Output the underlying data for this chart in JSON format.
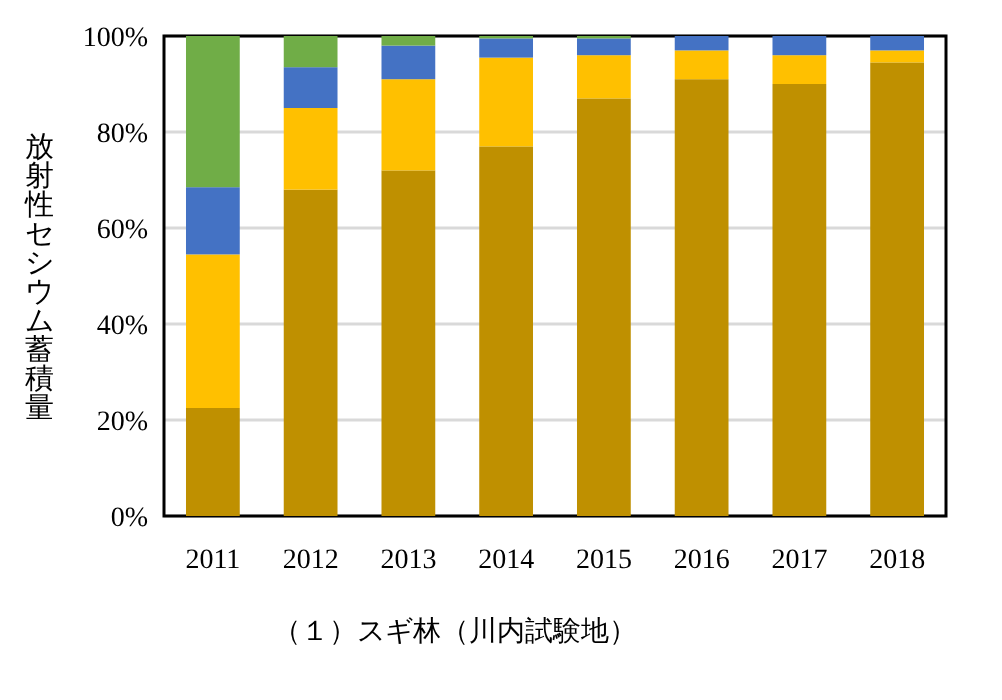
{
  "chart_data": {
    "type": "bar",
    "stacked": true,
    "title": "（１）スギ林（川内試験地）",
    "ylabel": "放射性セシウム蓄積量",
    "categories": [
      "2011",
      "2012",
      "2013",
      "2014",
      "2015",
      "2016",
      "2017",
      "2018"
    ],
    "series": [
      {
        "color": "#bf9000",
        "values": [
          22.5,
          68,
          72,
          77,
          87,
          91,
          90,
          94.5
        ]
      },
      {
        "color": "#ffc000",
        "values": [
          32,
          17,
          19,
          18.5,
          9,
          6,
          6,
          2.5
        ]
      },
      {
        "color": "#4472c4",
        "values": [
          14,
          8.5,
          7,
          4,
          3.5,
          3,
          4,
          3
        ]
      },
      {
        "color": "#70ad47",
        "values": [
          31.5,
          6.5,
          2,
          0.5,
          0.5,
          0,
          0,
          0
        ]
      }
    ],
    "ylim": [
      0,
      100
    ],
    "yticks": [
      {
        "value": 0,
        "label": "0%"
      },
      {
        "value": 20,
        "label": "20%"
      },
      {
        "value": 40,
        "label": "40%"
      },
      {
        "value": 60,
        "label": "60%"
      },
      {
        "value": 80,
        "label": "80%"
      },
      {
        "value": 100,
        "label": "100%"
      }
    ],
    "grid": "y"
  }
}
